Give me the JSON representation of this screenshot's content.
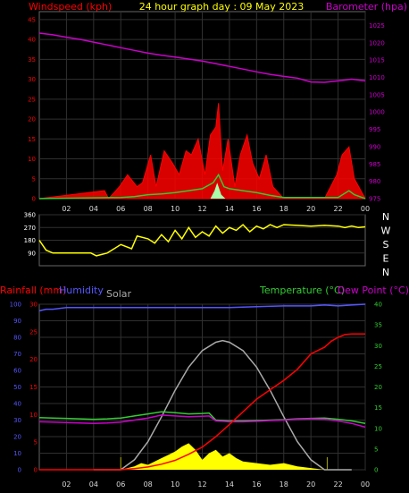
{
  "chart_data": [
    {
      "type": "line",
      "title": "24 hour graph day : 09 May 2023",
      "left_axis_label": "Windspeed (kph)",
      "right_axis_label": "Barometer (hpa)",
      "left_ticks": [
        0,
        5,
        10,
        15,
        20,
        25,
        30,
        35,
        40,
        45
      ],
      "right_ticks": [
        975,
        980,
        985,
        990,
        995,
        1000,
        1005,
        1010,
        1015,
        1020,
        1025
      ],
      "x_ticks": [
        "02",
        "04",
        "06",
        "08",
        "10",
        "12",
        "14",
        "16",
        "18",
        "20",
        "22",
        "00"
      ],
      "ylim_left": [
        0,
        47
      ],
      "ylim_right": [
        975,
        1029
      ],
      "grid": true,
      "colors": {
        "gust": "#ff0000",
        "avg": "#33cc33",
        "lull": "#aaffaa",
        "pressure": "#cc00cc",
        "title": "#ffff00",
        "left_label": "#ff0000",
        "right_label": "#cc00cc"
      },
      "series": [
        {
          "key": "pressure",
          "x": [
            0,
            1,
            2,
            3,
            4,
            5,
            6,
            7,
            8,
            9,
            10,
            11,
            12,
            13,
            14,
            15,
            16,
            17,
            18,
            19,
            20,
            21,
            22,
            23,
            24
          ],
          "values": [
            1022.8,
            1022.3,
            1021.6,
            1021.0,
            1020.2,
            1019.4,
            1018.6,
            1017.8,
            1017.0,
            1016.4,
            1015.9,
            1015.3,
            1014.7,
            1014.0,
            1013.2,
            1012.4,
            1011.6,
            1010.9,
            1010.3,
            1009.8,
            1008.7,
            1008.6,
            1009.0,
            1009.5,
            1009.0
          ]
        },
        {
          "key": "gust",
          "x": [
            0,
            4.8,
            5.1,
            5.9,
            6.5,
            7.2,
            7.6,
            8.2,
            8.6,
            9.2,
            9.8,
            10.3,
            10.8,
            11.2,
            11.7,
            12.2,
            12.6,
            13.0,
            13.2,
            13.5,
            13.9,
            14.4,
            14.8,
            15.3,
            15.7,
            16.2,
            16.7,
            17.2,
            18.0,
            19.0,
            20.0,
            21.0,
            21.9,
            22.3,
            22.8,
            23.2,
            24
          ],
          "values": [
            0,
            2,
            0,
            3,
            6,
            3,
            4,
            11,
            3,
            12,
            9,
            6,
            12,
            11,
            15,
            6,
            16,
            18,
            24,
            7,
            15,
            3,
            11,
            16,
            9,
            5,
            11,
            3,
            0,
            0,
            0,
            0,
            6,
            11,
            13,
            5,
            0
          ]
        },
        {
          "key": "avg",
          "x": [
            0,
            6,
            7,
            8,
            9,
            10,
            11,
            12,
            12.8,
            13.2,
            13.6,
            14,
            15,
            16,
            17,
            18,
            22,
            22.8,
            23.2,
            24
          ],
          "values": [
            0,
            0.3,
            0.5,
            1,
            1.2,
            1.5,
            2,
            2.5,
            4,
            6,
            3,
            2.5,
            2,
            1.5,
            0.8,
            0.3,
            0.3,
            2,
            1,
            0
          ]
        },
        {
          "key": "lull",
          "x": [
            12.6,
            12.9,
            13.1,
            13.4,
            13.7
          ],
          "values": [
            0,
            2,
            4,
            1,
            0
          ]
        }
      ]
    },
    {
      "type": "line",
      "series_name": "Wind direction",
      "left_ticks": [
        90,
        180,
        270,
        360
      ],
      "right_labels": [
        "N",
        "W",
        "S",
        "E",
        "N"
      ],
      "ylim": [
        0,
        360
      ],
      "colors": {
        "direction": "#ffff00"
      },
      "series": [
        {
          "key": "direction",
          "x": [
            0,
            0.5,
            1,
            2,
            3,
            3.8,
            4.2,
            5,
            6,
            6.8,
            7.2,
            8,
            8.5,
            9,
            9.5,
            10,
            10.5,
            11,
            11.5,
            12,
            12.5,
            13,
            13.5,
            14,
            14.5,
            15,
            15.5,
            16,
            16.5,
            17,
            17.5,
            18,
            19,
            20,
            21,
            22,
            22.5,
            23,
            23.5,
            24
          ],
          "values": [
            180,
            110,
            90,
            90,
            90,
            90,
            70,
            90,
            150,
            120,
            210,
            190,
            160,
            220,
            170,
            250,
            190,
            270,
            200,
            240,
            210,
            280,
            230,
            270,
            250,
            290,
            240,
            280,
            260,
            290,
            270,
            290,
            285,
            280,
            285,
            280,
            270,
            280,
            270,
            275
          ]
        }
      ]
    },
    {
      "type": "line",
      "labels": {
        "rain": "Rainfall (mm)",
        "humidity": "Humidity",
        "solar": "Solar",
        "temp": "Temperature (°C)",
        "dew": "Dew Point (°C)"
      },
      "left_ticks": [
        0,
        10,
        20,
        30,
        40,
        50,
        60,
        70,
        80,
        90,
        100
      ],
      "rain_ticks": [
        0,
        5,
        10,
        15,
        20,
        25,
        30
      ],
      "right_ticks": [
        0,
        5,
        10,
        15,
        20,
        25,
        30,
        35,
        40
      ],
      "ylim_humidity": [
        0,
        100
      ],
      "ylim_rain": [
        0,
        30
      ],
      "ylim_temp": [
        0,
        40
      ],
      "grid": true,
      "colors": {
        "rain": "#ff0000",
        "humidity": "#5555ff",
        "solar": "#aaaaaa",
        "temp": "#33cc33",
        "dew": "#cc00cc",
        "solar_fill": "#ffff00"
      },
      "series": [
        {
          "key": "humidity",
          "x": [
            0,
            0.5,
            1,
            2,
            4,
            6,
            8,
            10,
            12,
            14,
            16,
            18,
            20,
            21,
            22,
            23,
            24
          ],
          "values": [
            96,
            97,
            97,
            98,
            98,
            98,
            98,
            98,
            98,
            98,
            98.5,
            99,
            99,
            99.5,
            99,
            99.5,
            100
          ]
        },
        {
          "key": "temp",
          "x": [
            0,
            1,
            2,
            3,
            4,
            5,
            6,
            7,
            8,
            9,
            10,
            11,
            12,
            12.5,
            13,
            14,
            15,
            16,
            17,
            18,
            19,
            20,
            21,
            22,
            23,
            24
          ],
          "values": [
            12.6,
            12.5,
            12.4,
            12.3,
            12.2,
            12.3,
            12.5,
            13.0,
            13.5,
            14.0,
            13.8,
            13.5,
            13.6,
            13.7,
            12.0,
            11.8,
            11.8,
            11.9,
            12.0,
            12.1,
            12.3,
            12.4,
            12.5,
            12.2,
            11.8,
            11.2
          ]
        },
        {
          "key": "dew",
          "x": [
            0,
            1,
            2,
            3,
            4,
            5,
            6,
            7,
            8,
            9,
            10,
            11,
            12,
            12.5,
            13,
            14,
            15,
            16,
            17,
            18,
            19,
            20,
            21,
            22,
            23,
            24
          ],
          "values": [
            11.6,
            11.5,
            11.4,
            11.3,
            11.2,
            11.3,
            11.5,
            12.0,
            12.5,
            13.2,
            13.0,
            12.8,
            12.9,
            13.0,
            11.8,
            11.6,
            11.6,
            11.7,
            11.9,
            12.0,
            12.2,
            12.3,
            12.2,
            11.8,
            11.2,
            10.3
          ]
        },
        {
          "key": "rain",
          "x": [
            0,
            6,
            7,
            8,
            9,
            10,
            11,
            12,
            13,
            14,
            15,
            16,
            17,
            18,
            19,
            20,
            21,
            21.5,
            22,
            22.5,
            23,
            24
          ],
          "values": [
            0,
            0,
            0.2,
            0.5,
            1.0,
            1.7,
            2.8,
            4.1,
            6.0,
            8.2,
            10.5,
            12.8,
            14.5,
            16.2,
            18.2,
            21.0,
            22.2,
            23.3,
            24.0,
            24.5,
            24.6,
            24.6
          ]
        },
        {
          "key": "solar",
          "x": [
            4,
            5,
            6,
            7,
            8,
            9,
            10,
            11,
            12,
            13,
            13.5,
            14,
            15,
            16,
            17,
            18,
            19,
            20,
            21,
            22,
            23
          ],
          "values": [
            0,
            0,
            0,
            6,
            17,
            32,
            48,
            62,
            72,
            77,
            78,
            77,
            72,
            62,
            48,
            32,
            17,
            6,
            0,
            0,
            0
          ]
        },
        {
          "key": "solar_actual",
          "x": [
            6,
            7,
            7.5,
            8,
            8.5,
            9,
            9.5,
            10,
            10.5,
            11,
            11.5,
            12,
            12.5,
            13,
            13.5,
            14,
            14.5,
            15,
            16,
            17,
            18,
            19,
            20,
            21
          ],
          "values": [
            0,
            2,
            4,
            3,
            5,
            7,
            9,
            11,
            14,
            16,
            12,
            6,
            10,
            12,
            8,
            10,
            7,
            5,
            4,
            3,
            4,
            2,
            1,
            0
          ]
        }
      ]
    }
  ]
}
